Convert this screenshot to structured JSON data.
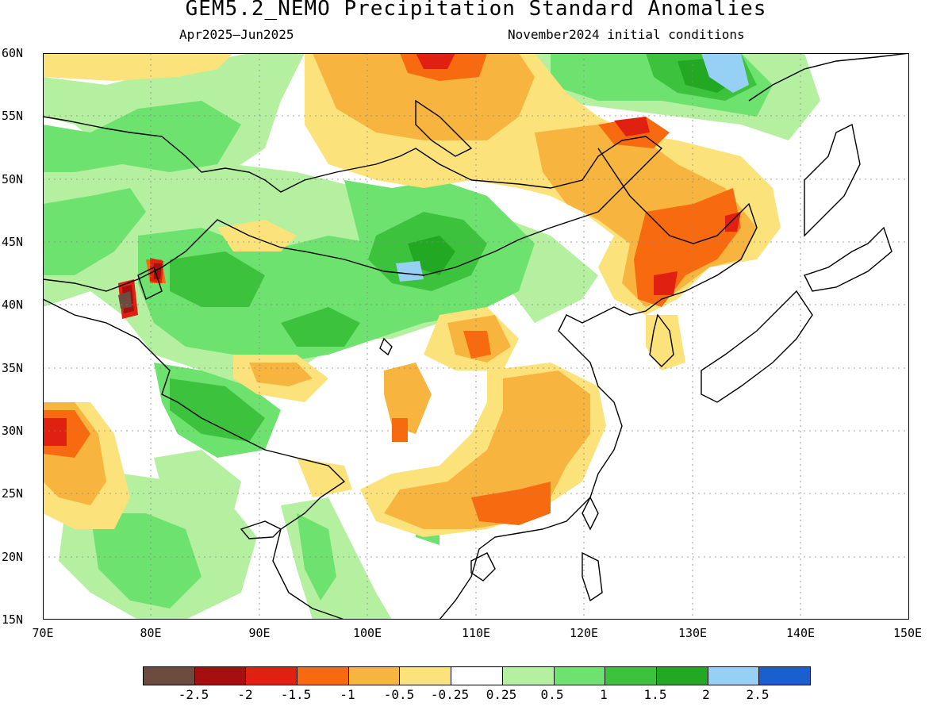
{
  "title": "GEM5.2_NEMO Precipitation Standard Anomalies",
  "period": "Apr2025—Jun2025",
  "init": "November2024 initial conditions",
  "lat_labels": [
    "60N",
    "55N",
    "50N",
    "45N",
    "40N",
    "35N",
    "30N",
    "25N",
    "20N",
    "15N"
  ],
  "lon_labels": [
    "70E",
    "80E",
    "90E",
    "100E",
    "110E",
    "120E",
    "130E",
    "140E",
    "150E"
  ],
  "legend": {
    "colors": [
      "#6e4b3f",
      "#a50f0f",
      "#e02010",
      "#f76a10",
      "#f7b540",
      "#fbe27a",
      "#ffffff",
      "#b4f0a0",
      "#6ee26e",
      "#3cc23c",
      "#22a822",
      "#96d1f5",
      "#1a5fcf"
    ],
    "labels": [
      "-2.5",
      "-2",
      "-1.5",
      "-1",
      "-0.5",
      "-0.25",
      "0.25",
      "0.5",
      "1",
      "1.5",
      "2",
      "2.5"
    ]
  },
  "colors": {
    "green_light": "#b4f0a0",
    "green": "#6ee26e",
    "green_mid": "#3cc23c",
    "green_dark": "#22a822",
    "blue_light": "#96d1f5",
    "yellow": "#fbe27a",
    "orange_light": "#f7b540",
    "orange": "#f76a10",
    "red": "#e02010",
    "dark_red": "#a50f0f",
    "brown": "#6e4b3f"
  }
}
